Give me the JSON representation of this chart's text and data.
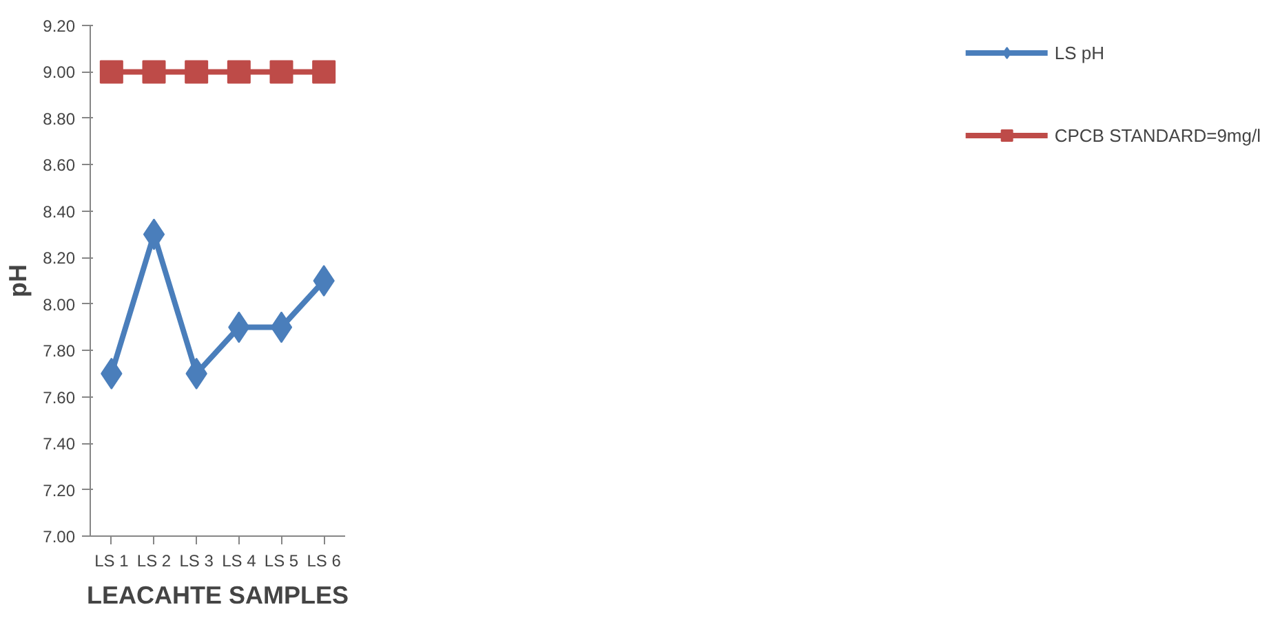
{
  "chart_data": {
    "type": "line",
    "xlabel": "LEACAHTE SAMPLES",
    "ylabel": "pH",
    "categories": [
      "LS 1",
      "LS 2",
      "LS 3",
      "LS 4",
      "LS 5",
      "LS 6"
    ],
    "series": [
      {
        "name": "LS pH",
        "color": "#4a7ebb",
        "marker": "diamond",
        "values": [
          7.7,
          8.3,
          7.7,
          7.9,
          7.9,
          8.1
        ]
      },
      {
        "name": "CPCB STANDARD=9mg/l",
        "color": "#be4b48",
        "marker": "square",
        "values": [
          9.0,
          9.0,
          9.0,
          9.0,
          9.0,
          9.0
        ]
      }
    ],
    "ylim": [
      7.0,
      9.2
    ],
    "yticks": [
      {
        "value": 7.0,
        "label": "7.00"
      },
      {
        "value": 7.2,
        "label": "7.20"
      },
      {
        "value": 7.4,
        "label": "7.40"
      },
      {
        "value": 7.6,
        "label": "7.60"
      },
      {
        "value": 7.8,
        "label": "7.80"
      },
      {
        "value": 8.0,
        "label": "8.00"
      },
      {
        "value": 8.2,
        "label": "8.20"
      },
      {
        "value": 8.4,
        "label": "8.40"
      },
      {
        "value": 8.6,
        "label": "8.60"
      },
      {
        "value": 8.8,
        "label": "8.80"
      },
      {
        "value": 9.0,
        "label": "9.00"
      },
      {
        "value": 9.2,
        "label": "9.20"
      }
    ],
    "grid": false,
    "legend": "right",
    "line_style": "solid"
  }
}
